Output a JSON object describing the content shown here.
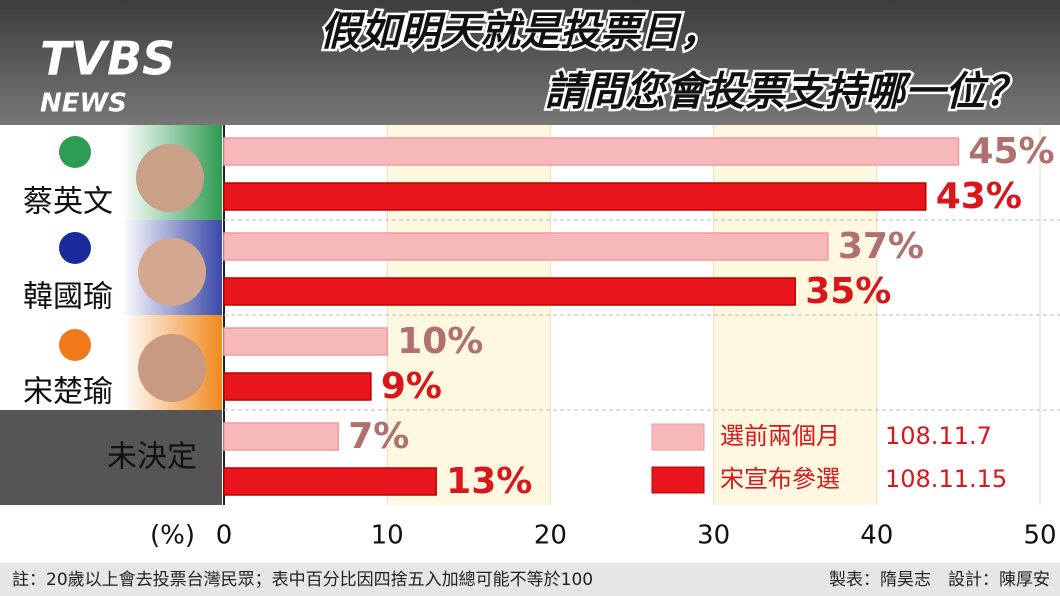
{
  "header": {
    "logo": "TVBS",
    "logo_sub": "NEWS"
  },
  "chart_data": {
    "type": "hbar",
    "title": [
      "假如明天就是投票日，",
      "請問您會投票支持哪一位？"
    ],
    "categories": [
      "蔡英文",
      "韓國瑜",
      "宋楚瑜",
      "未決定"
    ],
    "series": [
      {
        "name": "選前兩個月",
        "date": "108.11.7",
        "color": "#f7b8bc",
        "label_color": "#b07070",
        "values": [
          45,
          37,
          10,
          7
        ],
        "value_labels": [
          "45%",
          "37%",
          "10%",
          "7%"
        ]
      },
      {
        "name": "宋宣布參選",
        "date": "108.11.15",
        "color": "#e8161c",
        "label_color": "#d9161c",
        "values": [
          43,
          35,
          9,
          13
        ],
        "value_labels": [
          "43%",
          "35%",
          "9%",
          "13%"
        ]
      }
    ],
    "xlabel": "(%)",
    "xlim": [
      0,
      50
    ],
    "xticks": [
      0,
      10,
      20,
      30,
      40,
      50
    ]
  },
  "footer": {
    "note": "註：20歲以上會去投票台灣民眾；表中百分比因四捨五入加總可能不等於100",
    "credits": "製表：隋昊志　設計：陳厚安"
  }
}
